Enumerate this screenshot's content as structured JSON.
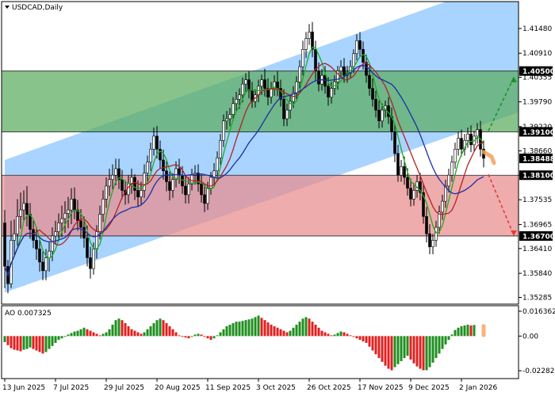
{
  "chart_data": {
    "type": "candlestick",
    "title": "USDCAD,Daily",
    "oscillator_label": "AO 0.007325",
    "price_axis": {
      "ylim": [
        1.3513,
        1.421
      ],
      "ticks": [
        "1.41480",
        "1.40910",
        "1.40355",
        "1.39790",
        "1.39220",
        "1.38660",
        "1.38100",
        "1.37535",
        "1.36965",
        "1.36410",
        "1.35840",
        "1.35285"
      ],
      "tick_values": [
        1.4148,
        1.4091,
        1.40355,
        1.3979,
        1.3922,
        1.3866,
        1.381,
        1.37535,
        1.36965,
        1.3641,
        1.3584,
        1.35285
      ]
    },
    "ao_axis": {
      "ylim": [
        -0.028,
        0.02
      ],
      "ticks": [
        "0.016362",
        "0.00",
        "-0.022825"
      ],
      "tick_values": [
        0.016362,
        0.0,
        -0.022825
      ]
    },
    "x_axis": {
      "labels": [
        "13 Jun 2025",
        "7 Jul 2025",
        "29 Jul 2025",
        "20 Aug 2025",
        "11 Sep 2025",
        "3 Oct 2025",
        "26 Oct 2025",
        "17 Nov 2025",
        "9 Dec 2025",
        "2 Jan 2026"
      ],
      "label_bars": [
        0,
        16,
        32,
        48,
        64,
        80,
        96,
        112,
        128,
        144
      ]
    },
    "levels": [
      {
        "label": "1.40500",
        "value": 1.405
      },
      {
        "label": "1.39100",
        "value": 1.391
      },
      {
        "label": "1.38100",
        "value": 1.381
      },
      {
        "label": "1.36700",
        "value": 1.367
      }
    ],
    "current_price": {
      "label": "1.38488",
      "value": 1.38488
    },
    "zones": [
      {
        "from": 1.391,
        "to": 1.405,
        "color": "#5aac5e"
      },
      {
        "from": 1.367,
        "to": 1.381,
        "color": "#e98c8c"
      }
    ],
    "channel": {
      "color": "#99ccff",
      "upper_start": [
        0,
        1.3845
      ],
      "upper_end": [
        162,
        1.427
      ],
      "lower_start": [
        0,
        1.354
      ],
      "lower_end": [
        162,
        1.3955
      ]
    },
    "ohlc": [
      [
        1.37,
        1.373,
        1.355,
        1.36
      ],
      [
        1.36,
        1.3615,
        1.3538,
        1.356
      ],
      [
        1.356,
        1.3705,
        1.355,
        1.366
      ],
      [
        1.366,
        1.3708,
        1.3625,
        1.3675
      ],
      [
        1.3675,
        1.3755,
        1.3647,
        1.3715
      ],
      [
        1.3715,
        1.377,
        1.3687,
        1.373
      ],
      [
        1.373,
        1.3775,
        1.3702,
        1.3745
      ],
      [
        1.3745,
        1.3785,
        1.3692,
        1.372
      ],
      [
        1.372,
        1.3746,
        1.3663,
        1.3685
      ],
      [
        1.3685,
        1.371,
        1.3642,
        1.366
      ],
      [
        1.366,
        1.3687,
        1.3615,
        1.364
      ],
      [
        1.364,
        1.3662,
        1.3588,
        1.361
      ],
      [
        1.361,
        1.3634,
        1.3568,
        1.359
      ],
      [
        1.359,
        1.364,
        1.3568,
        1.362
      ],
      [
        1.362,
        1.3655,
        1.3588,
        1.3635
      ],
      [
        1.3635,
        1.369,
        1.3612,
        1.367
      ],
      [
        1.367,
        1.3705,
        1.3652,
        1.368
      ],
      [
        1.368,
        1.3722,
        1.3658,
        1.37
      ],
      [
        1.37,
        1.374,
        1.3667,
        1.371
      ],
      [
        1.371,
        1.375,
        1.3677,
        1.3722
      ],
      [
        1.3722,
        1.376,
        1.3688,
        1.373
      ],
      [
        1.373,
        1.378,
        1.3697,
        1.3755
      ],
      [
        1.3755,
        1.3782,
        1.3709,
        1.373
      ],
      [
        1.373,
        1.3753,
        1.3682,
        1.3705
      ],
      [
        1.3705,
        1.3732,
        1.3664,
        1.369
      ],
      [
        1.369,
        1.3715,
        1.3643,
        1.3665
      ],
      [
        1.3665,
        1.3694,
        1.36,
        1.362
      ],
      [
        1.362,
        1.3645,
        1.3572,
        1.3595
      ],
      [
        1.3595,
        1.3655,
        1.3581,
        1.364
      ],
      [
        1.364,
        1.3695,
        1.3618,
        1.368
      ],
      [
        1.368,
        1.374,
        1.3662,
        1.372
      ],
      [
        1.372,
        1.3775,
        1.3702,
        1.3755
      ],
      [
        1.3755,
        1.3805,
        1.3735,
        1.3785
      ],
      [
        1.3785,
        1.3825,
        1.3762,
        1.38
      ],
      [
        1.38,
        1.3835,
        1.3778,
        1.381
      ],
      [
        1.381,
        1.3848,
        1.3787,
        1.3825
      ],
      [
        1.3825,
        1.3848,
        1.3778,
        1.38
      ],
      [
        1.38,
        1.3822,
        1.3755,
        1.3775
      ],
      [
        1.3775,
        1.3798,
        1.3742,
        1.3765
      ],
      [
        1.3765,
        1.381,
        1.3745,
        1.379
      ],
      [
        1.379,
        1.3825,
        1.3767,
        1.3805
      ],
      [
        1.3805,
        1.3812,
        1.3753,
        1.3775
      ],
      [
        1.3775,
        1.3798,
        1.3739,
        1.376
      ],
      [
        1.376,
        1.3795,
        1.3742,
        1.3775
      ],
      [
        1.3775,
        1.3835,
        1.3758,
        1.3815
      ],
      [
        1.3815,
        1.3855,
        1.3792,
        1.384
      ],
      [
        1.384,
        1.3885,
        1.382,
        1.387
      ],
      [
        1.387,
        1.392,
        1.3855,
        1.39
      ],
      [
        1.39,
        1.3923,
        1.3848,
        1.387
      ],
      [
        1.387,
        1.389,
        1.3825,
        1.3845
      ],
      [
        1.3845,
        1.3869,
        1.38,
        1.382
      ],
      [
        1.382,
        1.3842,
        1.3773,
        1.3795
      ],
      [
        1.3795,
        1.3818,
        1.3752,
        1.3775
      ],
      [
        1.3775,
        1.3815,
        1.3758,
        1.38
      ],
      [
        1.38,
        1.3842,
        1.3782,
        1.3825
      ],
      [
        1.3825,
        1.3848,
        1.379,
        1.381
      ],
      [
        1.381,
        1.3831,
        1.3767,
        1.3785
      ],
      [
        1.3785,
        1.3808,
        1.3745,
        1.3765
      ],
      [
        1.3765,
        1.3805,
        1.3745,
        1.379
      ],
      [
        1.379,
        1.3825,
        1.3775,
        1.381
      ],
      [
        1.381,
        1.3833,
        1.3788,
        1.3815
      ],
      [
        1.3815,
        1.3835,
        1.3772,
        1.379
      ],
      [
        1.379,
        1.3811,
        1.3747,
        1.3765
      ],
      [
        1.3765,
        1.3788,
        1.3725,
        1.3745
      ],
      [
        1.3745,
        1.3795,
        1.373,
        1.378
      ],
      [
        1.378,
        1.3818,
        1.3765,
        1.3805
      ],
      [
        1.3805,
        1.3838,
        1.3785,
        1.382
      ],
      [
        1.382,
        1.3865,
        1.3805,
        1.385
      ],
      [
        1.385,
        1.3905,
        1.3833,
        1.389
      ],
      [
        1.389,
        1.395,
        1.3875,
        1.3935
      ],
      [
        1.3935,
        1.3958,
        1.3915,
        1.394
      ],
      [
        1.394,
        1.3965,
        1.3923,
        1.395
      ],
      [
        1.395,
        1.399,
        1.3935,
        1.3975
      ],
      [
        1.3975,
        1.4002,
        1.3956,
        1.3985
      ],
      [
        1.3985,
        1.401,
        1.3963,
        1.3995
      ],
      [
        1.3995,
        1.4035,
        1.3978,
        1.402
      ],
      [
        1.402,
        1.4045,
        1.4,
        1.403
      ],
      [
        1.403,
        1.405,
        1.3987,
        1.4005
      ],
      [
        1.4005,
        1.4025,
        1.3965,
        1.398
      ],
      [
        1.398,
        1.4008,
        1.3966,
        1.3995
      ],
      [
        1.3995,
        1.403,
        1.3978,
        1.4015
      ],
      [
        1.4015,
        1.4042,
        1.3995,
        1.403
      ],
      [
        1.403,
        1.4055,
        1.3991,
        1.401
      ],
      [
        1.401,
        1.4033,
        1.3971,
        1.399
      ],
      [
        1.399,
        1.4025,
        1.3975,
        1.401
      ],
      [
        1.401,
        1.404,
        1.3993,
        1.4025
      ],
      [
        1.4025,
        1.405,
        1.3992,
        1.401
      ],
      [
        1.401,
        1.403,
        1.3968,
        1.3985
      ],
      [
        1.3985,
        1.4008,
        1.3923,
        1.394
      ],
      [
        1.394,
        1.3975,
        1.3923,
        1.396
      ],
      [
        1.396,
        1.3995,
        1.394,
        1.398
      ],
      [
        1.398,
        1.4015,
        1.3965,
        1.4
      ],
      [
        1.4,
        1.4038,
        1.3985,
        1.4025
      ],
      [
        1.4025,
        1.4075,
        1.401,
        1.406
      ],
      [
        1.406,
        1.412,
        1.404,
        1.41
      ],
      [
        1.41,
        1.414,
        1.408,
        1.4125
      ],
      [
        1.4125,
        1.4158,
        1.411,
        1.414
      ],
      [
        1.414,
        1.4163,
        1.4082,
        1.41
      ],
      [
        1.41,
        1.412,
        1.4028,
        1.405
      ],
      [
        1.405,
        1.407,
        1.4003,
        1.402
      ],
      [
        1.402,
        1.4055,
        1.4005,
        1.404
      ],
      [
        1.404,
        1.4062,
        1.3998,
        1.4015
      ],
      [
        1.4015,
        1.4036,
        1.397,
        1.399
      ],
      [
        1.399,
        1.4025,
        1.3975,
        1.401
      ],
      [
        1.401,
        1.404,
        1.3995,
        1.4025
      ],
      [
        1.4025,
        1.4062,
        1.4007,
        1.405
      ],
      [
        1.405,
        1.4075,
        1.4037,
        1.406
      ],
      [
        1.406,
        1.408,
        1.4023,
        1.404
      ],
      [
        1.404,
        1.4062,
        1.4023,
        1.4045
      ],
      [
        1.4045,
        1.4075,
        1.4032,
        1.406
      ],
      [
        1.406,
        1.41,
        1.4045,
        1.409
      ],
      [
        1.409,
        1.4135,
        1.4075,
        1.412
      ],
      [
        1.412,
        1.414,
        1.4082,
        1.41
      ],
      [
        1.41,
        1.4118,
        1.4053,
        1.407
      ],
      [
        1.407,
        1.4088,
        1.4023,
        1.404
      ],
      [
        1.404,
        1.4061,
        1.3993,
        1.401
      ],
      [
        1.401,
        1.4033,
        1.3968,
        1.3985
      ],
      [
        1.3985,
        1.4005,
        1.3943,
        1.396
      ],
      [
        1.396,
        1.3982,
        1.3918,
        1.3935
      ],
      [
        1.3935,
        1.3975,
        1.392,
        1.396
      ],
      [
        1.396,
        1.3982,
        1.3943,
        1.397
      ],
      [
        1.397,
        1.399,
        1.3928,
        1.3945
      ],
      [
        1.3945,
        1.3966,
        1.389,
        1.391
      ],
      [
        1.391,
        1.393,
        1.384,
        1.386
      ],
      [
        1.386,
        1.388,
        1.3795,
        1.381
      ],
      [
        1.381,
        1.3845,
        1.3795,
        1.383
      ],
      [
        1.383,
        1.3853,
        1.3788,
        1.3805
      ],
      [
        1.3805,
        1.3826,
        1.3763,
        1.378
      ],
      [
        1.378,
        1.3802,
        1.3738,
        1.3755
      ],
      [
        1.3755,
        1.3792,
        1.374,
        1.3775
      ],
      [
        1.3775,
        1.381,
        1.3758,
        1.3795
      ],
      [
        1.3795,
        1.3815,
        1.3752,
        1.377
      ],
      [
        1.377,
        1.379,
        1.3698,
        1.3715
      ],
      [
        1.3715,
        1.3737,
        1.3655,
        1.3675
      ],
      [
        1.3675,
        1.3697,
        1.3628,
        1.3645
      ],
      [
        1.3645,
        1.3675,
        1.3628,
        1.366
      ],
      [
        1.366,
        1.3705,
        1.3645,
        1.369
      ],
      [
        1.369,
        1.374,
        1.3675,
        1.3725
      ],
      [
        1.3725,
        1.3765,
        1.3707,
        1.375
      ],
      [
        1.375,
        1.38,
        1.3735,
        1.3785
      ],
      [
        1.3785,
        1.3825,
        1.377,
        1.381
      ],
      [
        1.381,
        1.3855,
        1.3795,
        1.384
      ],
      [
        1.384,
        1.3885,
        1.3825,
        1.387
      ],
      [
        1.387,
        1.391,
        1.3855,
        1.3895
      ],
      [
        1.3895,
        1.3915,
        1.3853,
        1.387
      ],
      [
        1.387,
        1.3905,
        1.3855,
        1.389
      ],
      [
        1.389,
        1.392,
        1.3873,
        1.3905
      ],
      [
        1.3905,
        1.3925,
        1.3863,
        1.388
      ],
      [
        1.388,
        1.3912,
        1.3865,
        1.39
      ],
      [
        1.39,
        1.393,
        1.3883,
        1.3915
      ],
      [
        1.3915,
        1.3935,
        1.3853,
        1.387
      ],
      [
        1.387,
        1.389,
        1.3828,
        1.3849
      ]
    ],
    "ao_values": [
      -0.004,
      -0.006,
      -0.008,
      -0.009,
      -0.0095,
      -0.01,
      -0.009,
      -0.0085,
      -0.0075,
      -0.0085,
      -0.0095,
      -0.0105,
      -0.0115,
      -0.0105,
      -0.0085,
      -0.0065,
      -0.0045,
      -0.0025,
      -0.0015,
      -0.0005,
      0.001,
      0.002,
      0.003,
      0.0035,
      0.0045,
      0.0055,
      0.0045,
      0.0035,
      0.0025,
      0.0015,
      0.0005,
      0.0015,
      0.0025,
      0.0045,
      0.0075,
      0.0105,
      0.0115,
      0.0105,
      0.0085,
      0.0065,
      0.0045,
      0.0035,
      0.0025,
      0.0015,
      0.0025,
      0.0045,
      0.0065,
      0.0085,
      0.0105,
      0.0115,
      0.0105,
      0.0085,
      0.0065,
      0.0045,
      0.0025,
      0.0005,
      -0.0005,
      -0.001,
      -0.0015,
      0.0,
      0.001,
      0.0015,
      0.001,
      0.0,
      -0.0015,
      -0.0025,
      -0.0015,
      0.0005,
      0.0025,
      0.0045,
      0.0065,
      0.0075,
      0.0085,
      0.0095,
      0.0095,
      0.01,
      0.0105,
      0.011,
      0.0115,
      0.0125,
      0.0135,
      0.012,
      0.0105,
      0.009,
      0.0075,
      0.0065,
      0.0055,
      0.0045,
      0.0035,
      0.0025,
      0.0035,
      0.0055,
      0.0075,
      0.0095,
      0.0115,
      0.0125,
      0.0115,
      0.0095,
      0.0075,
      0.0055,
      0.0035,
      0.0025,
      0.0015,
      0.0005,
      0.001,
      0.002,
      0.003,
      0.0025,
      0.0015,
      0.0005,
      -0.0005,
      -0.0015,
      -0.0025,
      -0.0035,
      -0.0045,
      -0.007,
      -0.0095,
      -0.012,
      -0.0145,
      -0.017,
      -0.0195,
      -0.0215,
      -0.0225,
      -0.0205,
      -0.0185,
      -0.0165,
      -0.0145,
      -0.013,
      -0.0155,
      -0.018,
      -0.02,
      -0.0215,
      -0.0225,
      -0.0225,
      -0.0205,
      -0.0175,
      -0.0145,
      -0.0115,
      -0.0085,
      -0.0055,
      -0.0025,
      0.001,
      0.004,
      0.0055,
      0.0065,
      0.007,
      0.0075,
      0.007,
      0.0073
    ],
    "moving_averages": [
      {
        "color": "#1faa1f",
        "period": 5
      },
      {
        "color": "#b22222",
        "period": 10
      },
      {
        "color": "#1a2fa8",
        "period": 20
      }
    ],
    "scenario_arrows": [
      {
        "color": "#1f8f2f",
        "direction": "up",
        "to_value": 1.4035
      },
      {
        "color": "#e23b3b",
        "direction": "down",
        "to_value": 1.3672
      }
    ],
    "colors": {
      "bull": "#1f8f1f",
      "bear": "#e02020",
      "candle": "#000000",
      "highlight": "#f5a05a"
    },
    "grid": false,
    "legend": "none"
  }
}
